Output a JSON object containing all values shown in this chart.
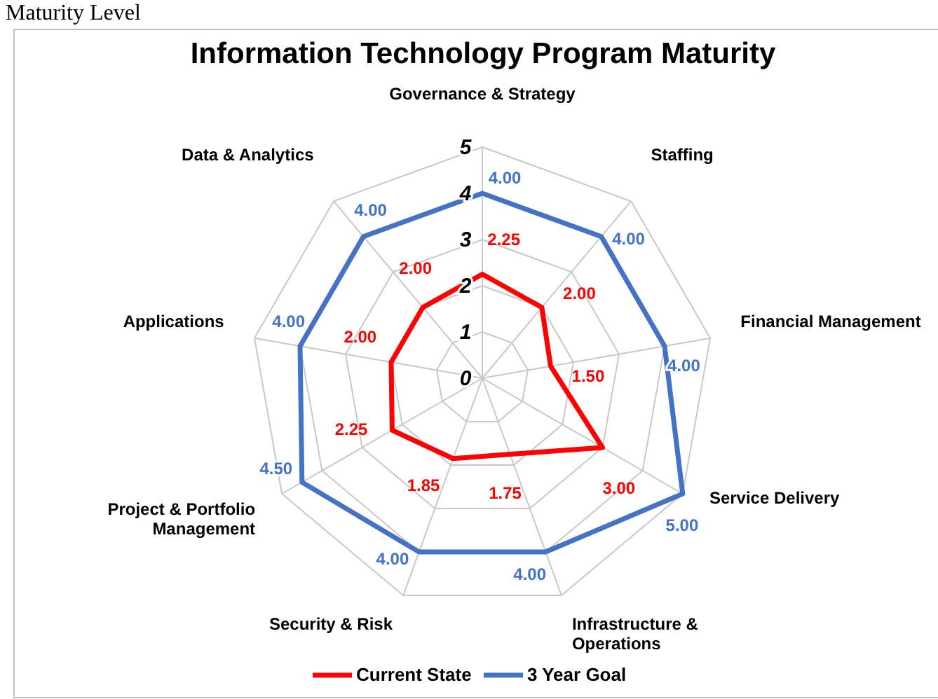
{
  "chart_data": {
    "type": "radar",
    "title": "Information Technology Program Maturity",
    "annotations": [
      "Maturity Level"
    ],
    "categories": [
      "Governance & Strategy",
      "Staffing",
      "Financial Management",
      "Service Delivery",
      "Infrastructure & Operations",
      "Security & Risk",
      "Project & Portfolio Management",
      "Applications",
      "Data & Analytics"
    ],
    "series": [
      {
        "name": "Current State",
        "color": "#ff0000",
        "values": [
          2.25,
          2.0,
          1.5,
          3.0,
          1.75,
          1.85,
          2.25,
          2.0,
          2.0
        ],
        "value_labels": [
          "2.25",
          "2.00",
          "1.50",
          "3.00",
          "1.75",
          "1.85",
          "2.25",
          "2.00",
          "2.00"
        ]
      },
      {
        "name": "3 Year Goal",
        "color": "#4472c4",
        "values": [
          4,
          4,
          4,
          5,
          4,
          4,
          4.5,
          4,
          4
        ],
        "value_labels": [
          "4.00",
          "4.00",
          "4.00",
          "5.00",
          "4.00",
          "4.00",
          "4.50",
          "4.00",
          "4.00"
        ]
      }
    ],
    "ylim": [
      0,
      5
    ],
    "yticks": [
      0,
      1,
      2,
      3,
      4,
      5
    ],
    "grid": true,
    "legend": "bottom",
    "line_style": "solid",
    "marker": "none"
  }
}
